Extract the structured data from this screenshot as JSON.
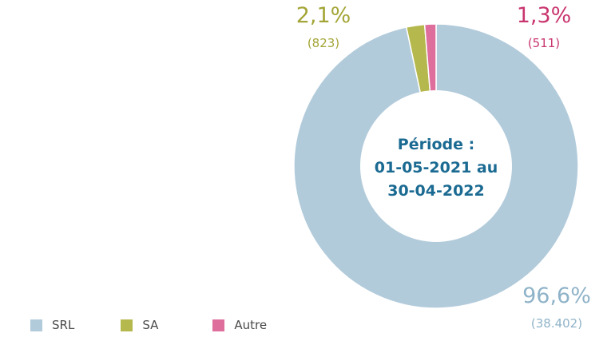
{
  "chart_data": {
    "type": "pie",
    "categories": [
      "SRL",
      "SA",
      "Autre"
    ],
    "values": [
      38402,
      823,
      511
    ],
    "percent_labels": [
      "96,6%",
      "2,1%",
      "1,3%"
    ],
    "count_labels": [
      "(38.402)",
      "(823)",
      "(511)"
    ],
    "colors": [
      "#b2cbdb",
      "#b5b84c",
      "#de6e9c"
    ],
    "label_colors": [
      "#8fb3c8",
      "#a3a536",
      "#c9356f"
    ],
    "center_text": [
      "Période :",
      "01-05-2021 au",
      "30-04-2022"
    ],
    "legend_position": "bottom-left"
  }
}
